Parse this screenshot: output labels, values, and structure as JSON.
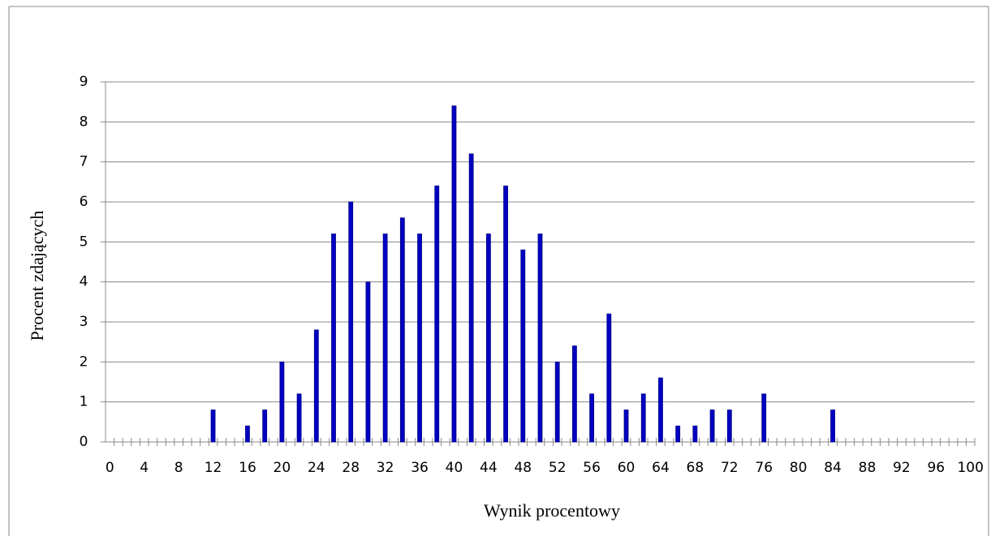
{
  "chart_data": {
    "type": "bar",
    "x_label": "Wynik procentowy",
    "y_label": "Procent zdających",
    "categories": [
      0,
      null,
      null,
      null,
      4,
      null,
      null,
      null,
      8,
      null,
      null,
      null,
      12,
      null,
      null,
      null,
      16,
      null,
      null,
      null,
      20,
      null,
      null,
      null,
      24,
      null,
      null,
      null,
      28,
      null,
      null,
      null,
      32,
      null,
      null,
      null,
      36,
      null,
      null,
      null,
      40,
      null,
      null,
      null,
      44,
      null,
      null,
      null,
      48,
      null,
      null,
      null,
      52,
      null,
      null,
      null,
      56,
      null,
      null,
      null,
      60,
      null,
      null,
      null,
      64,
      null,
      null,
      null,
      68,
      null,
      null,
      null,
      72,
      null,
      null,
      null,
      76,
      null,
      null,
      null,
      80,
      null,
      null,
      null,
      84,
      null,
      null,
      null,
      88,
      null,
      null,
      null,
      92,
      null,
      null,
      null,
      96,
      null,
      null,
      null,
      100
    ],
    "values": [
      0,
      0,
      0,
      0,
      0,
      0,
      0,
      0,
      0,
      0,
      0,
      0,
      0.8,
      0,
      0,
      0,
      0.4,
      0,
      0.8,
      0,
      2,
      0,
      1.2,
      0,
      2.8,
      0,
      5.2,
      0,
      6,
      0,
      4,
      0,
      5.2,
      0,
      5.6,
      0,
      5.2,
      0,
      6.4,
      0,
      8.4,
      0,
      7.2,
      0,
      5.2,
      0,
      6.4,
      0,
      4.8,
      0,
      5.2,
      0,
      2,
      0,
      2.4,
      0,
      1.2,
      0,
      3.2,
      0,
      0.8,
      0,
      1.2,
      0,
      1.6,
      0,
      0.4,
      0,
      0.4,
      0,
      0.8,
      0,
      0.8,
      0,
      0,
      0,
      1.2,
      0,
      0,
      0,
      0,
      0,
      0,
      0,
      0.8,
      0,
      0,
      0,
      0,
      0,
      0,
      0,
      0,
      0,
      0,
      0,
      0,
      0,
      0,
      0,
      0
    ],
    "color": "#0000c0",
    "ylim": [
      0,
      9
    ],
    "yticks": [
      0,
      1,
      2,
      3,
      4,
      5,
      6,
      7,
      8,
      9
    ],
    "grid": true
  }
}
